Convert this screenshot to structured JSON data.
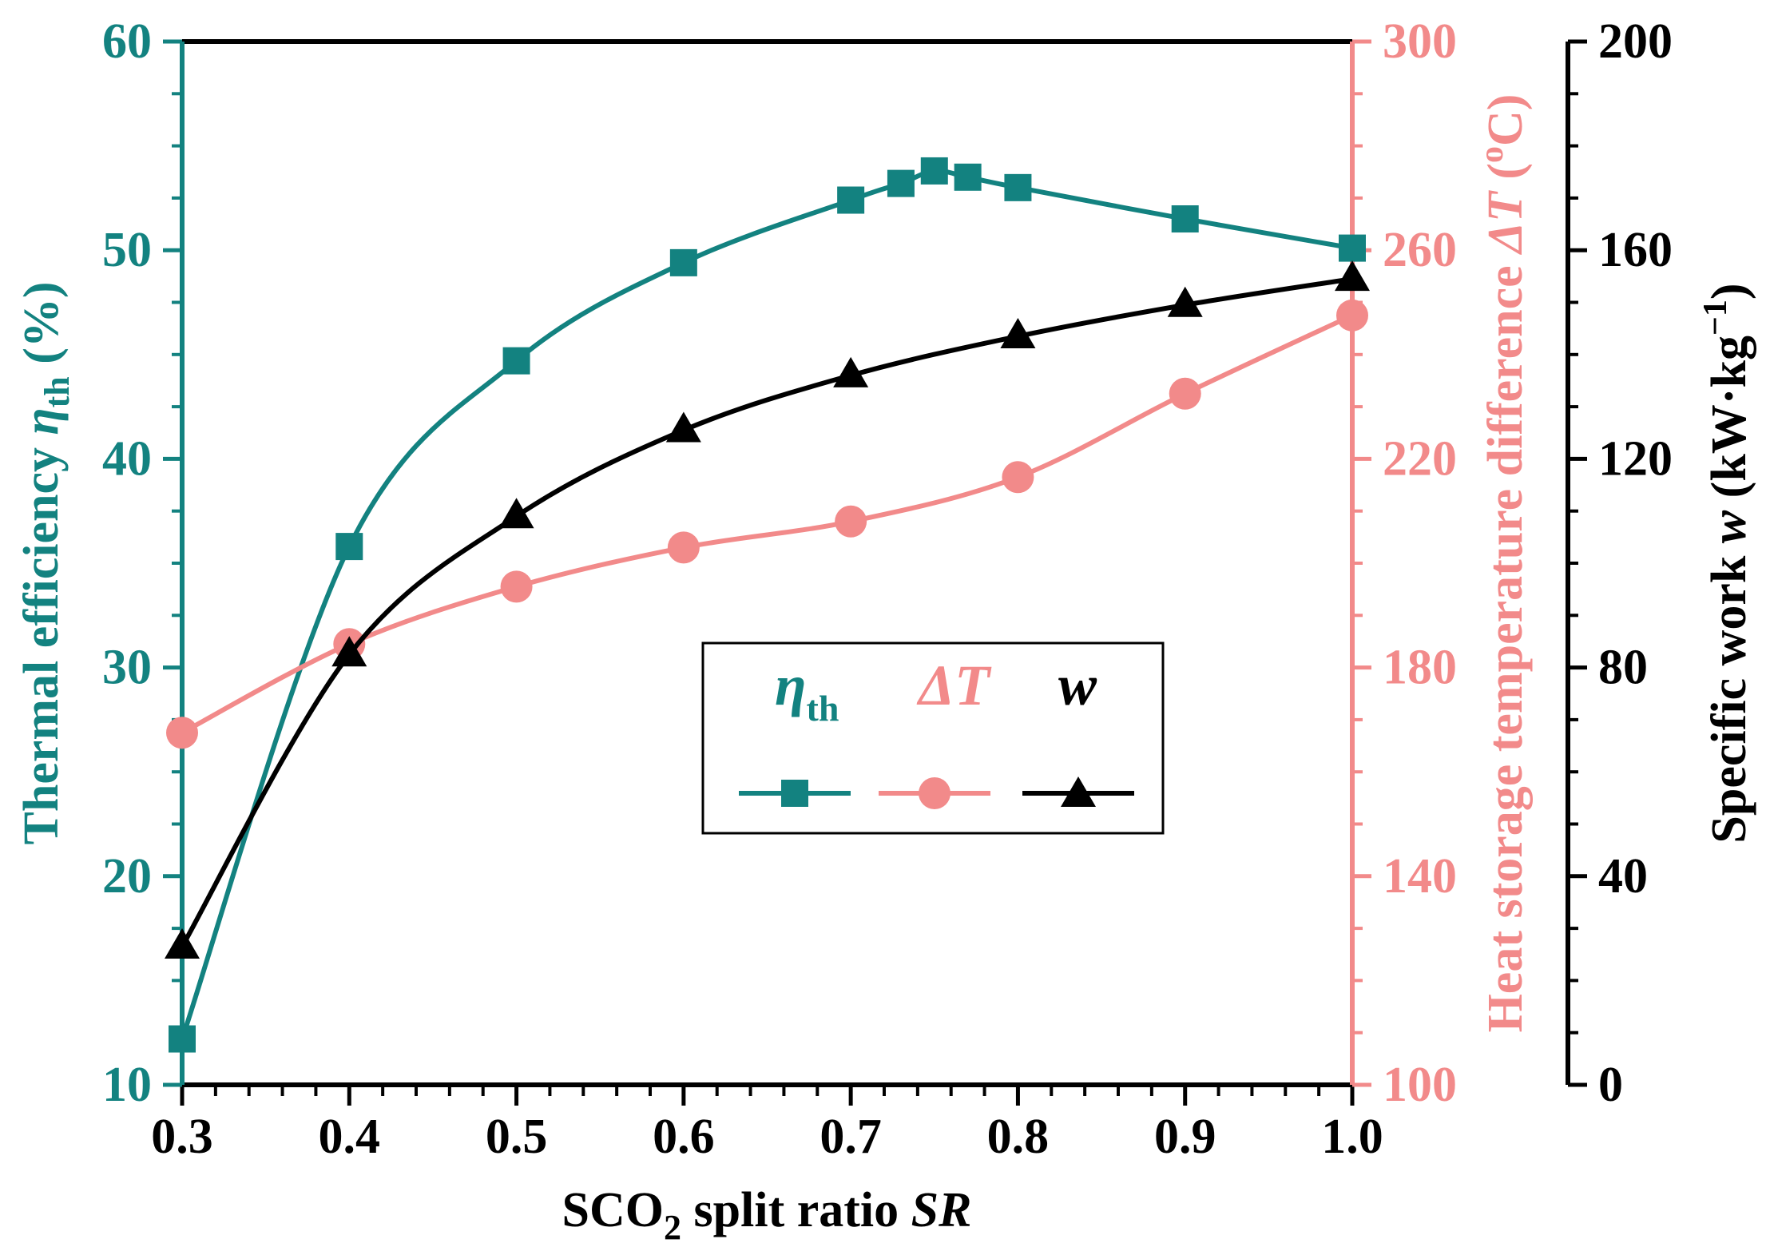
{
  "chart_data": {
    "type": "line",
    "x": [
      0.3,
      0.4,
      0.5,
      0.6,
      0.7,
      0.73,
      0.75,
      0.77,
      0.8,
      0.9,
      1.0
    ],
    "xlim": [
      0.3,
      1.0
    ],
    "xticks": [
      "0.3",
      "0.4",
      "0.5",
      "0.6",
      "0.7",
      "0.8",
      "0.9",
      "1.0"
    ],
    "xlabel": {
      "pre": "SCO",
      "sub": "2",
      "mid": " split ratio ",
      "italic": "SR"
    },
    "axes": {
      "left": {
        "label": {
          "pre": "Thermal efficiency ",
          "sym": "η",
          "sub": "th",
          "post": " (%)"
        },
        "ylim": [
          10,
          60
        ],
        "ticks": [
          "10",
          "20",
          "30",
          "40",
          "50",
          "60"
        ],
        "color": "#138280"
      },
      "right1": {
        "label": {
          "pre": "Heat storage temperature difference ",
          "sym": "ΔT",
          "post1": " (",
          "sup": "o",
          "post2": "C)"
        },
        "ylim": [
          100,
          300
        ],
        "ticks": [
          "100",
          "140",
          "180",
          "220",
          "260",
          "300"
        ],
        "color": "#f28a8a"
      },
      "right2": {
        "label": {
          "pre": "Specific work ",
          "sym": "w",
          "post1": " (kW·kg",
          "sup": "−1",
          "post2": ")"
        },
        "ylim": [
          0,
          200
        ],
        "ticks": [
          "0",
          "40",
          "80",
          "120",
          "160",
          "200"
        ],
        "color": "#000000"
      }
    },
    "series": [
      {
        "name": "ηth",
        "axis": "left",
        "marker": "square",
        "color": "#138280",
        "x": [
          0.3,
          0.4,
          0.5,
          0.6,
          0.7,
          0.73,
          0.75,
          0.77,
          0.8,
          0.9,
          1.0
        ],
        "values": [
          12.2,
          35.8,
          44.7,
          49.4,
          52.4,
          53.2,
          53.8,
          53.5,
          53.0,
          51.5,
          50.1
        ]
      },
      {
        "name": "ΔT",
        "axis": "right1",
        "marker": "circle",
        "color": "#f28a8a",
        "x": [
          0.3,
          0.4,
          0.5,
          0.6,
          0.7,
          0.8,
          0.9,
          1.0
        ],
        "values": [
          167.5,
          184.5,
          195.5,
          203,
          208,
          216.5,
          232.5,
          247.5
        ]
      },
      {
        "name": "w",
        "axis": "right2",
        "marker": "triangle",
        "color": "#000000",
        "x": [
          0.3,
          0.4,
          0.5,
          0.6,
          0.7,
          0.8,
          0.9,
          1.0
        ],
        "values": [
          26.5,
          82.5,
          109,
          125.5,
          136,
          143.5,
          149.5,
          154.5
        ]
      }
    ],
    "legend": {
      "position": "center-right",
      "entries": [
        {
          "sym": "η",
          "sub": "th",
          "color": "#138280",
          "marker": "square"
        },
        {
          "sym": "ΔT",
          "sub": "",
          "color": "#f28a8a",
          "marker": "circle"
        },
        {
          "sym": "w",
          "sub": "",
          "color": "#000000",
          "marker": "triangle"
        }
      ]
    }
  }
}
